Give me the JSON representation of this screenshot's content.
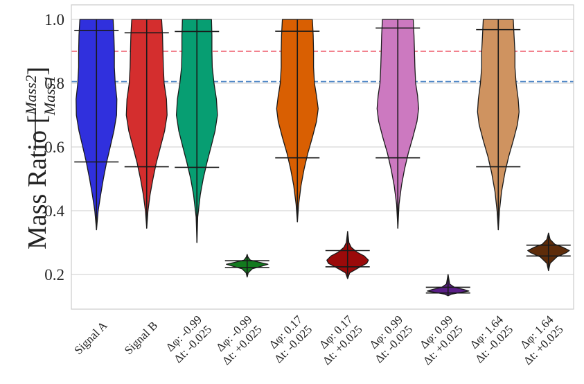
{
  "chart_data": {
    "type": "violin",
    "title": "",
    "xlabel": "",
    "ylabel": "Mass Ratio [Mass2/Mass1]",
    "ylabel_parts": {
      "prefix": "Mass Ratio [",
      "numerator": "Mass2",
      "denominator": "Mass1",
      "suffix": "]"
    },
    "ylim": [
      0.09,
      1.04
    ],
    "yticks": [
      0.2,
      0.4,
      0.6,
      0.8,
      1.0
    ],
    "ytick_labels": [
      "0.2",
      "0.4",
      "0.6",
      "0.8",
      "1.0"
    ],
    "grid": true,
    "reference_lines": [
      {
        "value": 0.9,
        "color": "#f0707f"
      },
      {
        "value": 0.805,
        "color": "#4f86c6"
      }
    ],
    "series": [
      {
        "name": "Signal A",
        "label_lines": [
          "Signal A"
        ],
        "color": "#3030dd",
        "min": 0.34,
        "max": 1.0,
        "q_low": 0.553,
        "q_high": 0.965,
        "profile": [
          [
            0.34,
            0
          ],
          [
            0.4,
            0.08
          ],
          [
            0.45,
            0.2
          ],
          [
            0.5,
            0.33
          ],
          [
            0.55,
            0.48
          ],
          [
            0.6,
            0.66
          ],
          [
            0.65,
            0.84
          ],
          [
            0.7,
            0.97
          ],
          [
            0.75,
            0.98
          ],
          [
            0.8,
            0.9
          ],
          [
            0.85,
            0.86
          ],
          [
            0.9,
            0.86
          ],
          [
            0.95,
            0.84
          ],
          [
            1.0,
            0.8
          ]
        ]
      },
      {
        "name": "Signal B",
        "label_lines": [
          "Signal B"
        ],
        "color": "#d42e2e",
        "min": 0.345,
        "max": 1.0,
        "q_low": 0.538,
        "q_high": 0.958,
        "profile": [
          [
            0.345,
            0
          ],
          [
            0.4,
            0.06
          ],
          [
            0.45,
            0.16
          ],
          [
            0.5,
            0.3
          ],
          [
            0.55,
            0.46
          ],
          [
            0.6,
            0.66
          ],
          [
            0.65,
            0.86
          ],
          [
            0.7,
            0.98
          ],
          [
            0.75,
            0.95
          ],
          [
            0.8,
            0.84
          ],
          [
            0.85,
            0.8
          ],
          [
            0.9,
            0.78
          ],
          [
            0.95,
            0.76
          ],
          [
            1.0,
            0.72
          ]
        ]
      },
      {
        "name": "Δφ: -0.99 Δt: -0.025",
        "label_lines": [
          "Δφ: -0.99",
          "Δt: -0.025"
        ],
        "color": "#079e72",
        "min": 0.3,
        "max": 1.0,
        "q_low": 0.536,
        "q_high": 0.962,
        "profile": [
          [
            0.3,
            0
          ],
          [
            0.38,
            0.04
          ],
          [
            0.45,
            0.16
          ],
          [
            0.5,
            0.3
          ],
          [
            0.55,
            0.48
          ],
          [
            0.6,
            0.68
          ],
          [
            0.65,
            0.87
          ],
          [
            0.7,
            0.99
          ],
          [
            0.75,
            0.94
          ],
          [
            0.8,
            0.82
          ],
          [
            0.85,
            0.74
          ],
          [
            0.9,
            0.72
          ],
          [
            0.95,
            0.72
          ],
          [
            1.0,
            0.7
          ]
        ]
      },
      {
        "name": "Δφ: -0.99 Δt: +0.025",
        "label_lines": [
          "Δφ: -0.99",
          "Δt: +0.025"
        ],
        "color": "#127a1e",
        "min": 0.192,
        "max": 0.263,
        "q_low": 0.222,
        "q_high": 0.243,
        "profile": [
          [
            0.192,
            0
          ],
          [
            0.205,
            0.05
          ],
          [
            0.218,
            0.25
          ],
          [
            0.226,
            0.7
          ],
          [
            0.232,
            1.0
          ],
          [
            0.238,
            0.6
          ],
          [
            0.245,
            0.15
          ],
          [
            0.255,
            0.04
          ],
          [
            0.263,
            0
          ]
        ]
      },
      {
        "name": "Δφ: 0.17 Δt: -0.025",
        "label_lines": [
          "Δφ: 0.17",
          "Δt: -0.025"
        ],
        "color": "#d95f02",
        "min": 0.365,
        "max": 1.0,
        "q_low": 0.566,
        "q_high": 0.963,
        "profile": [
          [
            0.365,
            0
          ],
          [
            0.42,
            0.06
          ],
          [
            0.48,
            0.18
          ],
          [
            0.53,
            0.32
          ],
          [
            0.58,
            0.5
          ],
          [
            0.63,
            0.72
          ],
          [
            0.68,
            0.92
          ],
          [
            0.72,
            1.0
          ],
          [
            0.76,
            0.92
          ],
          [
            0.8,
            0.82
          ],
          [
            0.85,
            0.78
          ],
          [
            0.9,
            0.78
          ],
          [
            0.95,
            0.76
          ],
          [
            1.0,
            0.72
          ]
        ]
      },
      {
        "name": "Δφ: 0.17 Δt: +0.025",
        "label_lines": [
          "Δφ: 0.17",
          "Δt: +0.025"
        ],
        "color": "#9b0a0a",
        "min": 0.187,
        "max": 0.335,
        "q_low": 0.224,
        "q_high": 0.275,
        "profile": [
          [
            0.187,
            0
          ],
          [
            0.205,
            0.1
          ],
          [
            0.222,
            0.55
          ],
          [
            0.235,
            0.92
          ],
          [
            0.245,
            1.0
          ],
          [
            0.258,
            0.8
          ],
          [
            0.27,
            0.45
          ],
          [
            0.285,
            0.18
          ],
          [
            0.3,
            0.06
          ],
          [
            0.335,
            0
          ]
        ]
      },
      {
        "name": "Δφ: 0.99 Δt: -0.025",
        "label_lines": [
          "Δφ: 0.99",
          "Δt: -0.025"
        ],
        "color": "#cc79c0",
        "min": 0.345,
        "max": 1.0,
        "q_low": 0.566,
        "q_high": 0.973,
        "profile": [
          [
            0.345,
            0
          ],
          [
            0.42,
            0.06
          ],
          [
            0.48,
            0.18
          ],
          [
            0.53,
            0.32
          ],
          [
            0.58,
            0.5
          ],
          [
            0.63,
            0.72
          ],
          [
            0.68,
            0.92
          ],
          [
            0.72,
            1.0
          ],
          [
            0.76,
            0.95
          ],
          [
            0.8,
            0.86
          ],
          [
            0.85,
            0.82
          ],
          [
            0.9,
            0.8
          ],
          [
            0.95,
            0.78
          ],
          [
            1.0,
            0.74
          ]
        ]
      },
      {
        "name": "Δφ: 0.99 Δt: +0.025",
        "label_lines": [
          "Δφ: 0.99",
          "Δt: +0.025"
        ],
        "color": "#5a1e88",
        "min": 0.133,
        "max": 0.2,
        "q_low": 0.142,
        "q_high": 0.16,
        "profile": [
          [
            0.133,
            0
          ],
          [
            0.138,
            0.15
          ],
          [
            0.143,
            0.55
          ],
          [
            0.148,
            1.0
          ],
          [
            0.153,
            0.75
          ],
          [
            0.16,
            0.3
          ],
          [
            0.17,
            0.08
          ],
          [
            0.2,
            0
          ]
        ]
      },
      {
        "name": "Δφ: 1.64 Δt: -0.025",
        "label_lines": [
          "Δφ: 1.64",
          "Δt: -0.025"
        ],
        "color": "#cf9360",
        "min": 0.34,
        "max": 1.0,
        "q_low": 0.538,
        "q_high": 0.968,
        "profile": [
          [
            0.34,
            0
          ],
          [
            0.4,
            0.06
          ],
          [
            0.46,
            0.16
          ],
          [
            0.52,
            0.32
          ],
          [
            0.57,
            0.5
          ],
          [
            0.62,
            0.72
          ],
          [
            0.67,
            0.92
          ],
          [
            0.71,
            1.0
          ],
          [
            0.75,
            0.96
          ],
          [
            0.8,
            0.86
          ],
          [
            0.85,
            0.8
          ],
          [
            0.9,
            0.8
          ],
          [
            0.95,
            0.76
          ],
          [
            1.0,
            0.72
          ]
        ]
      },
      {
        "name": "Δφ: 1.64 Δt: +0.025",
        "label_lines": [
          "Δφ: 1.64",
          "Δt: +0.025"
        ],
        "color": "#5e2c0a",
        "min": 0.212,
        "max": 0.33,
        "q_low": 0.258,
        "q_high": 0.292,
        "profile": [
          [
            0.212,
            0
          ],
          [
            0.235,
            0.08
          ],
          [
            0.255,
            0.4
          ],
          [
            0.268,
            0.85
          ],
          [
            0.275,
            1.0
          ],
          [
            0.285,
            0.7
          ],
          [
            0.295,
            0.3
          ],
          [
            0.31,
            0.08
          ],
          [
            0.33,
            0
          ]
        ]
      }
    ]
  }
}
